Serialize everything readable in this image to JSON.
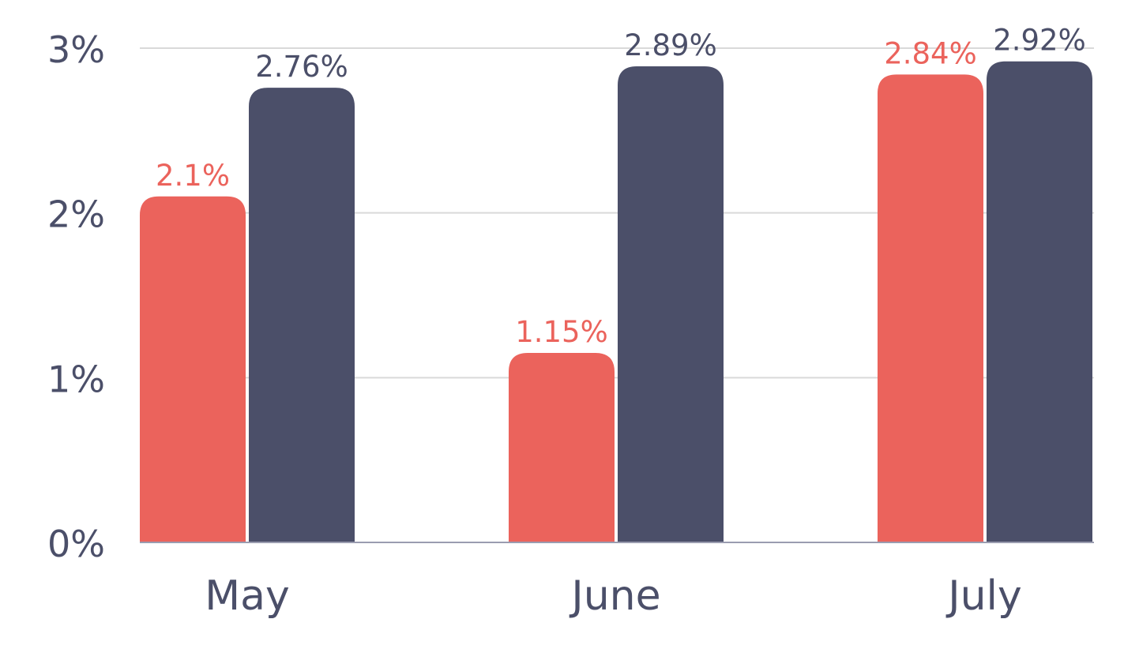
{
  "chart_data": {
    "type": "bar",
    "categories": [
      "May",
      "June",
      "July"
    ],
    "series": [
      {
        "values": [
          2.1,
          1.15,
          2.84
        ],
        "labels": [
          "2.1%",
          "1.15%",
          "2.84%"
        ],
        "color": "#eb635c"
      },
      {
        "values": [
          2.76,
          2.89,
          2.92
        ],
        "labels": [
          "2.76%",
          "2.89%",
          "2.92%"
        ],
        "color": "#4b4f69"
      }
    ],
    "ylim": [
      0,
      3
    ],
    "yticks": [
      0,
      1,
      2,
      3
    ],
    "ytick_labels": [
      "0%",
      "1%",
      "2%",
      "3%"
    ],
    "grid": true,
    "gridline_color": "#d9d9d9",
    "axis_color": "#9a9cb0",
    "text_color": "#4b4f69"
  }
}
